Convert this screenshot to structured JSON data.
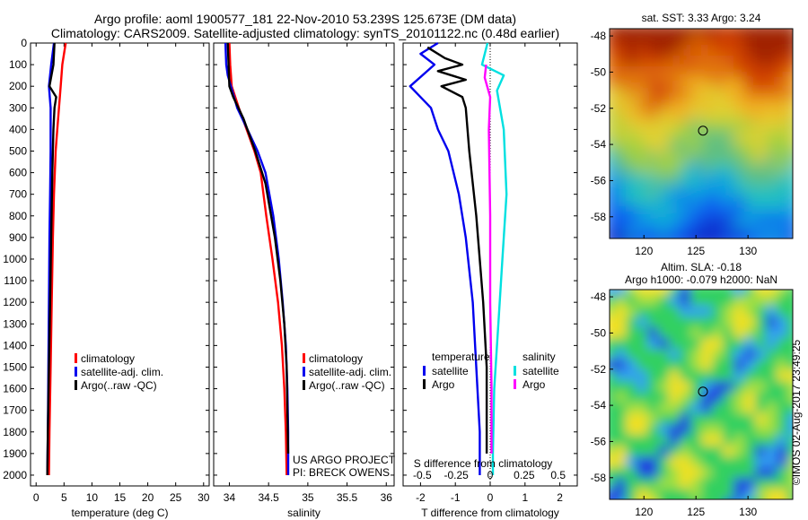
{
  "header": {
    "title_line1": "Argo profile: aoml 1900577_181 22-Nov-2010 53.239S 125.673E (DM data)",
    "title_line2": "Climatology: CARS2009. Satellite-adjusted climatology: synTS_20101122.nc (0.48d earlier)"
  },
  "colors": {
    "climatology": "#ff0000",
    "satellite_adj_clim": "#0000ee",
    "argo": "#000000",
    "salinity_satellite": "#00e0e0",
    "salinity_argo": "#ff00ff"
  },
  "chart_data": [
    {
      "id": "temperature",
      "type": "line",
      "xlabel": "temperature (deg C)",
      "ylabel": "",
      "xlim": [
        -1,
        31
      ],
      "ylim": [
        2050,
        0
      ],
      "xticks": [
        "0",
        "5",
        "10",
        "15",
        "20",
        "25",
        "30"
      ],
      "xtick_values": [
        0,
        5,
        10,
        15,
        20,
        25,
        30
      ],
      "yticks": [
        "0",
        "100",
        "200",
        "300",
        "400",
        "500",
        "600",
        "700",
        "800",
        "900",
        "1000",
        "1100",
        "1200",
        "1300",
        "1400",
        "1500",
        "1600",
        "1700",
        "1800",
        "1900",
        "2000"
      ],
      "ytick_values": [
        0,
        100,
        200,
        300,
        400,
        500,
        600,
        700,
        800,
        900,
        1000,
        1100,
        1200,
        1300,
        1400,
        1500,
        1600,
        1700,
        1800,
        1900,
        2000
      ],
      "legend": [
        "climatology",
        "satellite-adj. clim.",
        "Argo(..raw -QC)"
      ],
      "series": [
        {
          "name": "climatology",
          "color": "#ff0000",
          "points": [
            [
              5.3,
              0
            ],
            [
              5,
              50
            ],
            [
              4.7,
              100
            ],
            [
              4.4,
              200
            ],
            [
              4.1,
              300
            ],
            [
              3.8,
              400
            ],
            [
              3.5,
              500
            ],
            [
              3.2,
              700
            ],
            [
              3.0,
              900
            ],
            [
              2.8,
              1200
            ],
            [
              2.6,
              1500
            ],
            [
              2.4,
              1800
            ],
            [
              2.3,
              2000
            ]
          ]
        },
        {
          "name": "satellite-adj. clim.",
          "color": "#0000ee",
          "points": [
            [
              3.2,
              0
            ],
            [
              2.7,
              100
            ],
            [
              2.3,
              200
            ],
            [
              2.6,
              300
            ],
            [
              2.6,
              500
            ],
            [
              2.5,
              700
            ],
            [
              2.4,
              900
            ],
            [
              2.3,
              1200
            ],
            [
              2.2,
              1500
            ],
            [
              2.1,
              1800
            ],
            [
              2.0,
              2000
            ]
          ]
        },
        {
          "name": "Argo(..raw -QC)",
          "color": "#000000",
          "points": [
            [
              3.3,
              0
            ],
            [
              3.1,
              100
            ],
            [
              2.4,
              200
            ],
            [
              3.6,
              250
            ],
            [
              3.3,
              300
            ],
            [
              3.1,
              400
            ],
            [
              2.9,
              600
            ],
            [
              2.7,
              900
            ],
            [
              2.5,
              1200
            ],
            [
              2.3,
              1500
            ],
            [
              2.1,
              1800
            ],
            [
              2.0,
              2000
            ]
          ]
        }
      ]
    },
    {
      "id": "salinity",
      "type": "line",
      "xlabel": "salinity",
      "ylabel": "",
      "xlim": [
        33.8,
        36.1
      ],
      "ylim": [
        2050,
        0
      ],
      "xticks": [
        "34",
        "34.5",
        "35",
        "35.5",
        "36"
      ],
      "xtick_values": [
        34,
        34.5,
        35,
        35.5,
        36
      ],
      "legend": [
        "climatology",
        "satellite-adj. clim.",
        "Argo(..raw -QC)"
      ],
      "annotation": [
        "US ARGO PROJECT",
        "PI: BRECK OWENS"
      ],
      "series": [
        {
          "name": "climatology",
          "color": "#ff0000",
          "points": [
            [
              34.0,
              0
            ],
            [
              34.01,
              100
            ],
            [
              34.03,
              200
            ],
            [
              34.12,
              300
            ],
            [
              34.22,
              400
            ],
            [
              34.32,
              500
            ],
            [
              34.4,
              600
            ],
            [
              34.47,
              800
            ],
            [
              34.55,
              1000
            ],
            [
              34.62,
              1200
            ],
            [
              34.67,
              1400
            ],
            [
              34.7,
              1600
            ],
            [
              34.72,
              1800
            ],
            [
              34.73,
              2000
            ]
          ]
        },
        {
          "name": "satellite-adj. clim.",
          "color": "#0000ee",
          "points": [
            [
              33.95,
              0
            ],
            [
              33.96,
              100
            ],
            [
              33.98,
              150
            ],
            [
              34.02,
              200
            ],
            [
              34.1,
              300
            ],
            [
              34.23,
              400
            ],
            [
              34.36,
              500
            ],
            [
              34.46,
              600
            ],
            [
              34.56,
              800
            ],
            [
              34.63,
              1000
            ],
            [
              34.68,
              1200
            ],
            [
              34.72,
              1400
            ],
            [
              34.74,
              1600
            ],
            [
              34.75,
              1800
            ],
            [
              34.75,
              2000
            ]
          ]
        },
        {
          "name": "Argo(..raw -QC)",
          "color": "#000000",
          "points": [
            [
              33.98,
              0
            ],
            [
              33.99,
              100
            ],
            [
              34.0,
              200
            ],
            [
              34.05,
              250
            ],
            [
              34.18,
              350
            ],
            [
              34.33,
              500
            ],
            [
              34.46,
              650
            ],
            [
              34.58,
              900
            ],
            [
              34.65,
              1100
            ],
            [
              34.7,
              1300
            ],
            [
              34.73,
              1500
            ],
            [
              34.74,
              1700
            ],
            [
              34.75,
              1900
            ]
          ]
        }
      ]
    },
    {
      "id": "difference",
      "type": "line",
      "xlabel": "T difference from climatology",
      "xlabel_top": "S difference from climatology",
      "xlim": [
        -2.5,
        2.5
      ],
      "ylim": [
        2050,
        0
      ],
      "xticks": [
        "-2",
        "-1",
        "0",
        "1",
        "2"
      ],
      "xtick_values": [
        -2,
        -1,
        0,
        1,
        2
      ],
      "sticks": [
        "-0.5",
        "-0.25",
        "0",
        "0.25",
        "0.5"
      ],
      "stick_values": [
        -0.5,
        -0.25,
        0,
        0.25,
        0.5
      ],
      "zero_line": "dotted",
      "legend_headers": [
        "temperature",
        "salinity"
      ],
      "legend": [
        "satellite",
        "Argo",
        "satellite",
        "Argo"
      ],
      "series": [
        {
          "name": "satellite",
          "group": "temperature",
          "color": "#0000ee",
          "points": [
            [
              -1.5,
              0
            ],
            [
              -2.0,
              50
            ],
            [
              -1.6,
              100
            ],
            [
              -2.3,
              200
            ],
            [
              -1.7,
              300
            ],
            [
              -1.5,
              400
            ],
            [
              -1.2,
              500
            ],
            [
              -0.9,
              700
            ],
            [
              -0.7,
              900
            ],
            [
              -0.5,
              1200
            ],
            [
              -0.4,
              1500
            ],
            [
              -0.3,
              1800
            ],
            [
              -0.3,
              2000
            ]
          ]
        },
        {
          "name": "Argo",
          "group": "temperature",
          "color": "#000000",
          "points": [
            [
              -1.8,
              20
            ],
            [
              -1.3,
              70
            ],
            [
              -0.8,
              100
            ],
            [
              -1.5,
              130
            ],
            [
              -0.7,
              170
            ],
            [
              -1.4,
              200
            ],
            [
              -0.8,
              250
            ],
            [
              -0.7,
              300
            ],
            [
              -0.6,
              500
            ],
            [
              -0.4,
              800
            ],
            [
              -0.2,
              1200
            ],
            [
              -0.1,
              1500
            ],
            [
              -0.1,
              1900
            ]
          ]
        },
        {
          "name": "satellite",
          "group": "salinity",
          "color": "#00e0e0",
          "points": [
            [
              -0.02,
              0
            ],
            [
              -0.06,
              100
            ],
            [
              0.1,
              150
            ],
            [
              0.05,
              220
            ],
            [
              0.1,
              400
            ],
            [
              0.12,
              700
            ],
            [
              0.09,
              1000
            ],
            [
              0.06,
              1300
            ],
            [
              0.03,
              1600
            ],
            [
              0.02,
              1900
            ],
            [
              0.02,
              2000
            ]
          ]
        },
        {
          "name": "Argo",
          "group": "salinity",
          "color": "#ff00ff",
          "points": [
            [
              -0.03,
              100
            ],
            [
              -0.04,
              160
            ],
            [
              0.0,
              250
            ],
            [
              -0.01,
              400
            ],
            [
              0.0,
              800
            ],
            [
              0.0,
              1200
            ],
            [
              0.01,
              1600
            ],
            [
              0.01,
              1900
            ]
          ]
        }
      ]
    },
    {
      "id": "sst_map",
      "type": "heatmap",
      "title": "sat. SST: 3.33 Argo: 3.24",
      "xticks": [
        "120",
        "125",
        "130"
      ],
      "xtick_values": [
        120,
        125,
        130
      ],
      "yticks": [
        "-48",
        "-50",
        "-52",
        "-54",
        "-56",
        "-58"
      ],
      "ytick_values": [
        -48,
        -50,
        -52,
        -54,
        -56,
        -58
      ],
      "xlim": [
        116.7,
        134.3
      ],
      "ylim": [
        -59.2,
        -47.6
      ],
      "marker": [
        125.673,
        -53.239
      ]
    },
    {
      "id": "sla_map",
      "type": "heatmap",
      "title": "Altim. SLA: -0.18",
      "subtitle": "Argo h1000: -0.079 h2000: NaN",
      "xticks": [
        "120",
        "125",
        "130"
      ],
      "xtick_values": [
        120,
        125,
        130
      ],
      "yticks": [
        "-48",
        "-50",
        "-52",
        "-54",
        "-56",
        "-58"
      ],
      "ytick_values": [
        -48,
        -50,
        -52,
        -54,
        -56,
        -58
      ],
      "xlim": [
        116.7,
        134.3
      ],
      "ylim": [
        -59.2,
        -47.6
      ],
      "marker": [
        125.673,
        -53.239
      ],
      "side_label": "©IMOS 02-Aug-2017 23:49:25"
    }
  ]
}
